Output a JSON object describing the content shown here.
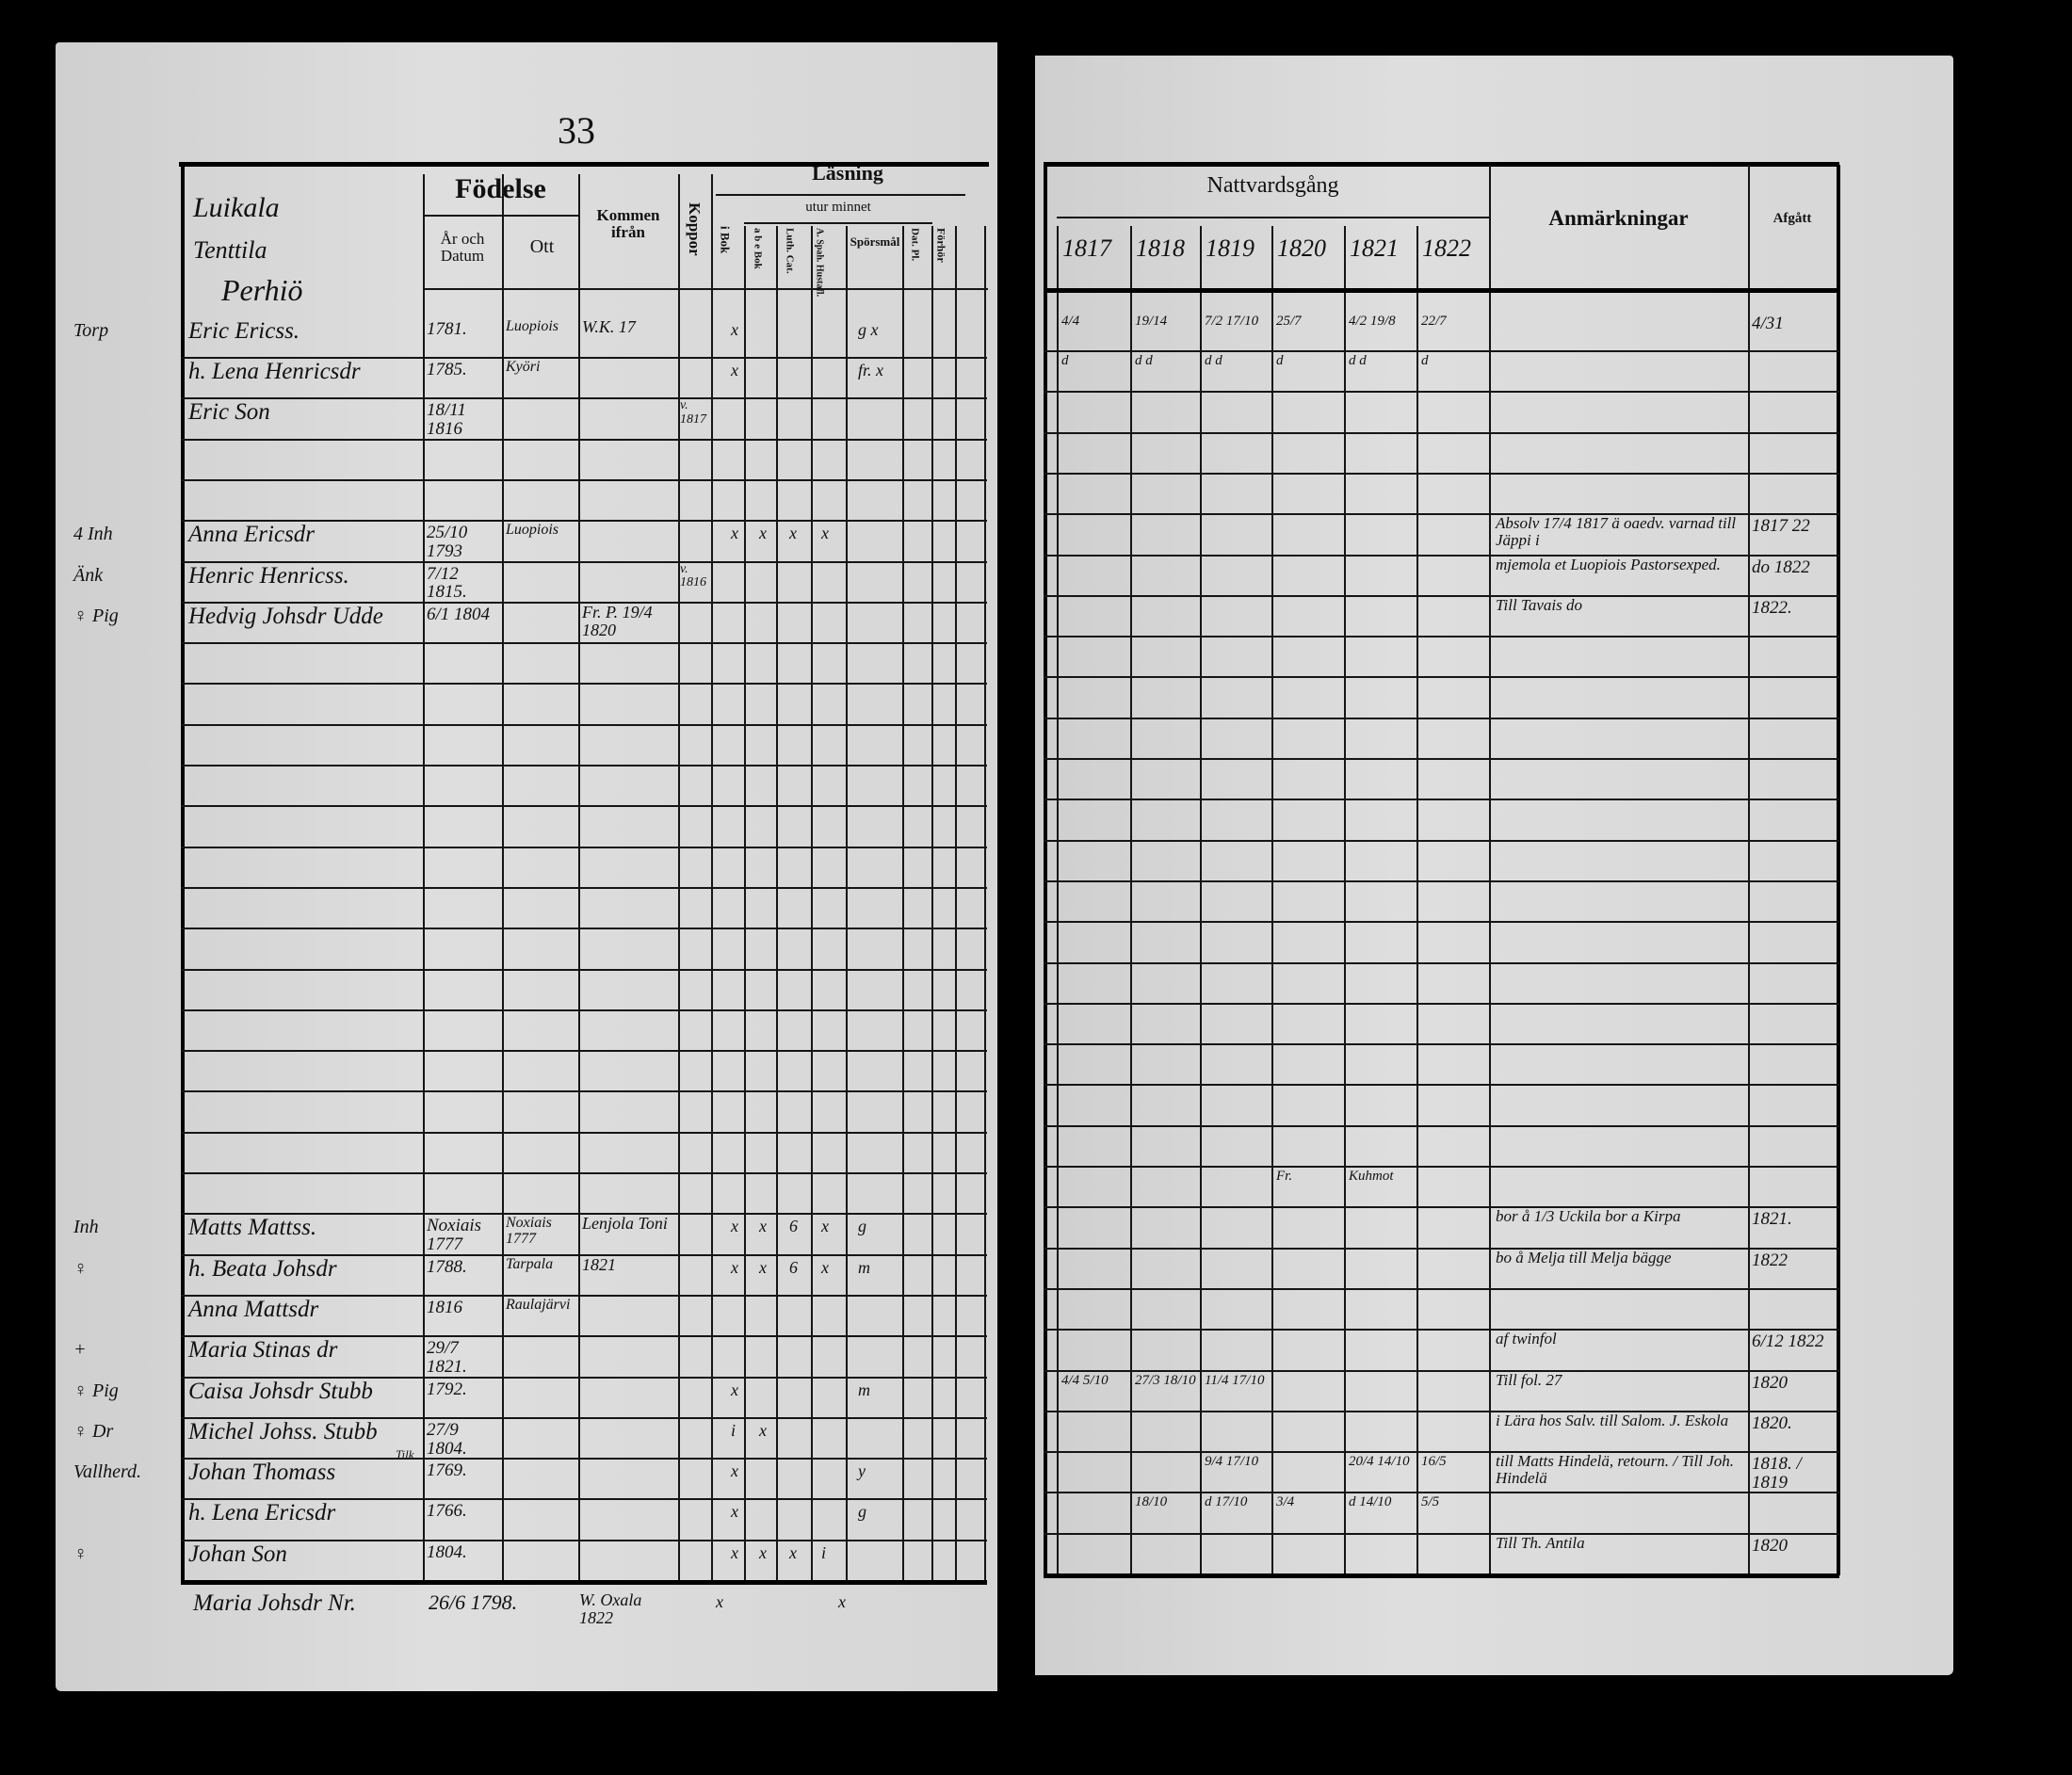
{
  "page_number": "33",
  "left": {
    "village_lines": [
      "Luikala",
      "Tenttila",
      "Perhiö"
    ],
    "headers": {
      "fodelse": "Födelse",
      "ar_och_datum": "År och Datum",
      "ott": "Ott",
      "kommen_ifran": "Kommen ifrån",
      "koppor": "Koppor",
      "lasning": "Läsning",
      "utur_minnet": "utur minnet",
      "i_bok": "i Bok",
      "abe_bok": "a b e Bok",
      "luth_cat": "Luth. Cat.",
      "a_spah": "A. Spah. Hustafl.",
      "sporsmal": "Spörsmål",
      "dat_pl": "Dat. Pl.",
      "forhor": "Förhör"
    },
    "rows": [
      {
        "margin": "Torp",
        "name": "Eric Ericss.",
        "birth": "1781.",
        "ott": "Luopiois",
        "kommen": "W.K. 17",
        "koppor": "",
        "marks": [
          "",
          "x",
          "",
          "",
          "",
          "g x"
        ]
      },
      {
        "margin": "",
        "name": "h. Lena Henricsdr",
        "birth": "1785.",
        "ott": "Kyöri",
        "kommen": "",
        "koppor": "",
        "marks": [
          "",
          "x",
          "",
          "",
          "",
          "fr. x"
        ]
      },
      {
        "margin": "",
        "name": "Eric Son",
        "birth": "18/11 1816",
        "ott": "",
        "kommen": "",
        "koppor": "v. 1817",
        "marks": [
          "",
          "",
          "",
          "",
          "",
          ""
        ]
      },
      {
        "margin": "",
        "name": "",
        "birth": "",
        "ott": "",
        "kommen": "",
        "koppor": "",
        "marks": [
          "",
          "",
          "",
          "",
          "",
          ""
        ]
      },
      {
        "margin": "",
        "name": "",
        "birth": "",
        "ott": "",
        "kommen": "",
        "koppor": "",
        "marks": [
          "",
          "",
          "",
          "",
          "",
          ""
        ]
      },
      {
        "margin": "4 Inh",
        "name": "Anna Ericsdr",
        "birth": "25/10 1793",
        "ott": "Luopiois",
        "kommen": "",
        "koppor": "",
        "marks": [
          "",
          "x",
          "x",
          "x",
          "x",
          ""
        ]
      },
      {
        "margin": "Änk",
        "name": "Henric Henricss.",
        "birth": "7/12 1815.",
        "ott": "",
        "kommen": "",
        "koppor": "v. 1816",
        "marks": [
          "",
          "",
          "",
          "",
          "",
          ""
        ]
      },
      {
        "margin": "♀ Pig",
        "name": "Hedvig Johsdr Udde",
        "birth": "6/1 1804",
        "ott": "",
        "kommen": "Fr. P. 19/4 1820",
        "koppor": "",
        "marks": [
          "",
          "",
          "",
          "",
          "",
          ""
        ]
      },
      {
        "margin": "",
        "name": "",
        "birth": "",
        "ott": "",
        "kommen": "",
        "koppor": "",
        "marks": [
          "",
          "",
          "",
          "",
          "",
          ""
        ]
      },
      {
        "margin": "",
        "name": "",
        "birth": "",
        "ott": "",
        "kommen": "",
        "koppor": "",
        "marks": [
          "",
          "",
          "",
          "",
          "",
          ""
        ]
      },
      {
        "margin": "",
        "name": "",
        "birth": "",
        "ott": "",
        "kommen": "",
        "koppor": "",
        "marks": [
          "",
          "",
          "",
          "",
          "",
          ""
        ]
      },
      {
        "margin": "",
        "name": "",
        "birth": "",
        "ott": "",
        "kommen": "",
        "koppor": "",
        "marks": [
          "",
          "",
          "",
          "",
          "",
          ""
        ]
      },
      {
        "margin": "",
        "name": "",
        "birth": "",
        "ott": "",
        "kommen": "",
        "koppor": "",
        "marks": [
          "",
          "",
          "",
          "",
          "",
          ""
        ]
      },
      {
        "margin": "",
        "name": "",
        "birth": "",
        "ott": "",
        "kommen": "",
        "koppor": "",
        "marks": [
          "",
          "",
          "",
          "",
          "",
          ""
        ]
      },
      {
        "margin": "",
        "name": "",
        "birth": "",
        "ott": "",
        "kommen": "",
        "koppor": "",
        "marks": [
          "",
          "",
          "",
          "",
          "",
          ""
        ]
      },
      {
        "margin": "",
        "name": "",
        "birth": "",
        "ott": "",
        "kommen": "",
        "koppor": "",
        "marks": [
          "",
          "",
          "",
          "",
          "",
          ""
        ]
      },
      {
        "margin": "",
        "name": "",
        "birth": "",
        "ott": "",
        "kommen": "",
        "koppor": "",
        "marks": [
          "",
          "",
          "",
          "",
          "",
          ""
        ]
      },
      {
        "margin": "",
        "name": "",
        "birth": "",
        "ott": "",
        "kommen": "",
        "koppor": "",
        "marks": [
          "",
          "",
          "",
          "",
          "",
          ""
        ]
      },
      {
        "margin": "",
        "name": "",
        "birth": "",
        "ott": "",
        "kommen": "",
        "koppor": "",
        "marks": [
          "",
          "",
          "",
          "",
          "",
          ""
        ]
      },
      {
        "margin": "",
        "name": "",
        "birth": "",
        "ott": "",
        "kommen": "",
        "koppor": "",
        "marks": [
          "",
          "",
          "",
          "",
          "",
          ""
        ]
      },
      {
        "margin": "",
        "name": "",
        "birth": "",
        "ott": "",
        "kommen": "",
        "koppor": "",
        "marks": [
          "",
          "",
          "",
          "",
          "",
          ""
        ]
      },
      {
        "margin": "",
        "name": "",
        "birth": "",
        "ott": "",
        "kommen": "",
        "koppor": "",
        "marks": [
          "",
          "",
          "",
          "",
          "",
          ""
        ]
      },
      {
        "margin": "Inh",
        "name": "Matts Mattss.",
        "birth": "Noxiais 1777",
        "ott": "Noxiais 1777",
        "kommen": "Lenjola Toni",
        "koppor": "",
        "marks": [
          "",
          "x",
          "x",
          "6",
          "x",
          "g"
        ]
      },
      {
        "margin": "♀",
        "name": "h. Beata Johsdr",
        "birth": "1788.",
        "ott": "Tarpala",
        "kommen": "1821",
        "koppor": "",
        "marks": [
          "",
          "x",
          "x",
          "6",
          "x",
          "m"
        ]
      },
      {
        "margin": "",
        "name": "Anna Mattsdr",
        "birth": "1816",
        "ott": "Raulajärvi",
        "kommen": "",
        "koppor": "",
        "marks": [
          "",
          "",
          "",
          "",
          "",
          ""
        ]
      },
      {
        "margin": "+",
        "name": "Maria Stinas dr",
        "birth": "29/7 1821.",
        "ott": "",
        "kommen": "",
        "koppor": "",
        "marks": [
          "",
          "",
          "",
          "",
          "",
          ""
        ]
      },
      {
        "margin": "♀ Pig",
        "name": "Caisa Johsdr Stubb",
        "birth": "1792.",
        "ott": "",
        "kommen": "",
        "koppor": "",
        "marks": [
          "",
          "x",
          "",
          "",
          "",
          "m"
        ]
      },
      {
        "margin": "♀ Dr",
        "name": "Michel Johss. Stubb",
        "birth": "27/9 1804.",
        "ott": "",
        "kommen": "",
        "koppor": "",
        "marks": [
          "",
          "i",
          "x",
          "",
          "",
          ""
        ]
      },
      {
        "margin": "Vallherd.",
        "name": "Johan Thomass",
        "birth": "1769.",
        "ott": "",
        "kommen": "",
        "koppor": "",
        "marks": [
          "",
          "x",
          "",
          "",
          "",
          "y"
        ]
      },
      {
        "margin": "",
        "name": "h. Lena Ericsdr",
        "birth": "1766.",
        "ott": "",
        "kommen": "",
        "koppor": "",
        "marks": [
          "",
          "x",
          "",
          "",
          "",
          "g"
        ]
      },
      {
        "margin": "♀",
        "name": "Johan Son",
        "birth": "1804.",
        "ott": "",
        "kommen": "",
        "koppor": "",
        "marks": [
          "",
          "x",
          "x",
          "x",
          "i",
          ""
        ]
      }
    ],
    "below": {
      "name": "Maria Johsdr Nr.",
      "birth": "26/6 1798.",
      "kommen": "W. Oxala 1822",
      "mark1": "x",
      "mark2": "x"
    },
    "name_superscript": "Tilk"
  },
  "right": {
    "headers": {
      "nattvardsgang": "Nattvardsgång",
      "anmarkningar": "Anmärkningar",
      "afgatt": "Afgått"
    },
    "years": [
      "1817",
      "1818",
      "1819",
      "1820",
      "1821",
      "1822"
    ],
    "rows": [
      {
        "c": [
          "4/4",
          "19/14",
          "7/2 17/10",
          "25/7",
          "4/2 19/8",
          "22/7"
        ],
        "anm": "",
        "afg": "4/31"
      },
      {
        "c": [
          "d",
          "d d",
          "d d",
          "d",
          "d d",
          "d"
        ],
        "anm": "",
        "afg": ""
      },
      {
        "c": [
          "",
          "",
          "",
          "",
          "",
          ""
        ],
        "anm": "",
        "afg": ""
      },
      {
        "c": [
          "",
          "",
          "",
          "",
          "",
          ""
        ],
        "anm": "",
        "afg": ""
      },
      {
        "c": [
          "",
          "",
          "",
          "",
          "",
          ""
        ],
        "anm": "",
        "afg": ""
      },
      {
        "c": [
          "",
          "",
          "",
          "",
          "",
          ""
        ],
        "anm": "Absolv 17/4 1817 ä oaedv. varnad till Jäppi i",
        "afg": "1817 22"
      },
      {
        "c": [
          "",
          "",
          "",
          "",
          "",
          ""
        ],
        "anm": "mjemola et Luopiois  Pastorsexped.",
        "afg": "do 1822"
      },
      {
        "c": [
          "",
          "",
          "",
          "",
          "",
          ""
        ],
        "anm": "Till Tavais do",
        "afg": "1822."
      },
      {
        "c": [
          "",
          "",
          "",
          "",
          "",
          ""
        ],
        "anm": "",
        "afg": ""
      },
      {
        "c": [
          "",
          "",
          "",
          "",
          "",
          ""
        ],
        "anm": "",
        "afg": ""
      },
      {
        "c": [
          "",
          "",
          "",
          "",
          "",
          ""
        ],
        "anm": "",
        "afg": ""
      },
      {
        "c": [
          "",
          "",
          "",
          "",
          "",
          ""
        ],
        "anm": "",
        "afg": ""
      },
      {
        "c": [
          "",
          "",
          "",
          "",
          "",
          ""
        ],
        "anm": "",
        "afg": ""
      },
      {
        "c": [
          "",
          "",
          "",
          "",
          "",
          ""
        ],
        "anm": "",
        "afg": ""
      },
      {
        "c": [
          "",
          "",
          "",
          "",
          "",
          ""
        ],
        "anm": "",
        "afg": ""
      },
      {
        "c": [
          "",
          "",
          "",
          "",
          "",
          ""
        ],
        "anm": "",
        "afg": ""
      },
      {
        "c": [
          "",
          "",
          "",
          "",
          "",
          ""
        ],
        "anm": "",
        "afg": ""
      },
      {
        "c": [
          "",
          "",
          "",
          "",
          "",
          ""
        ],
        "anm": "",
        "afg": ""
      },
      {
        "c": [
          "",
          "",
          "",
          "",
          "",
          ""
        ],
        "anm": "",
        "afg": ""
      },
      {
        "c": [
          "",
          "",
          "",
          "",
          "",
          ""
        ],
        "anm": "",
        "afg": ""
      },
      {
        "c": [
          "",
          "",
          "",
          "",
          "",
          ""
        ],
        "anm": "",
        "afg": ""
      },
      {
        "c": [
          "",
          "",
          "",
          "Fr.",
          "Kuhmot",
          ""
        ],
        "anm": "",
        "afg": ""
      },
      {
        "c": [
          "",
          "",
          "",
          "",
          "",
          ""
        ],
        "anm": "bor å 1/3 Uckila  bor a Kirpa",
        "afg": "1821."
      },
      {
        "c": [
          "",
          "",
          "",
          "",
          "",
          ""
        ],
        "anm": "bo å Melja  till Melja bägge",
        "afg": "1822"
      },
      {
        "c": [
          "",
          "",
          "",
          "",
          "",
          ""
        ],
        "anm": "",
        "afg": ""
      },
      {
        "c": [
          "",
          "",
          "",
          "",
          "",
          ""
        ],
        "anm": "af twinfol",
        "afg": "6/12 1822"
      },
      {
        "c": [
          "4/4 5/10",
          "27/3 18/10",
          "11/4 17/10",
          "",
          "",
          ""
        ],
        "anm": "Till fol. 27",
        "afg": "1820"
      },
      {
        "c": [
          "",
          "",
          "",
          "",
          "",
          ""
        ],
        "anm": "i Lära hos Salv. till Salom. J. Eskola",
        "afg": "1820."
      },
      {
        "c": [
          "",
          "",
          "9/4 17/10",
          "",
          "20/4 14/10",
          "16/5"
        ],
        "anm": "till Matts Hindelä, retourn. / Till Joh. Hindelä",
        "afg": "1818. / 1819"
      },
      {
        "c": [
          "",
          "18/10",
          "d 17/10",
          "3/4",
          "d 14/10",
          "5/5"
        ],
        "anm": "",
        "afg": ""
      },
      {
        "c": [
          "",
          "",
          "",
          "",
          "",
          ""
        ],
        "anm": "Till Th. Antila",
        "afg": "1820"
      }
    ]
  }
}
